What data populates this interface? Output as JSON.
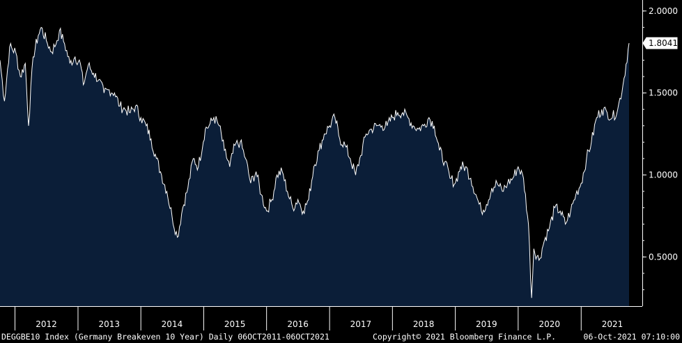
{
  "chart_data": {
    "type": "area",
    "ylim": [
      0.2,
      2.05
    ],
    "x_range": [
      "2011-10-06",
      "2021-10-06"
    ],
    "y_ticks": [
      {
        "value": 2.0,
        "label": "2.0000"
      },
      {
        "value": 1.5,
        "label": "1.5000"
      },
      {
        "value": 1.0,
        "label": "1.0000"
      },
      {
        "value": 0.5,
        "label": "0.5000"
      }
    ],
    "x_ticks": [
      "2012",
      "2013",
      "2014",
      "2015",
      "2016",
      "2017",
      "2018",
      "2019",
      "2020",
      "2021"
    ],
    "last_value": {
      "value": 1.8041,
      "label": "1.8041"
    },
    "x": [
      "2011-10-06",
      "2011-11-01",
      "2011-12-01",
      "2012-01-05",
      "2012-02-01",
      "2012-03-01",
      "2012-03-20",
      "2012-04-15",
      "2012-05-15",
      "2012-06-01",
      "2012-07-01",
      "2012-08-01",
      "2012-09-01",
      "2012-09-15",
      "2012-10-15",
      "2012-11-15",
      "2012-12-15",
      "2013-01-15",
      "2013-02-01",
      "2013-03-01",
      "2013-04-01",
      "2013-05-01",
      "2013-06-01",
      "2013-07-01",
      "2013-08-01",
      "2013-09-01",
      "2013-10-01",
      "2013-11-01",
      "2013-12-01",
      "2014-01-01",
      "2014-02-01",
      "2014-03-01",
      "2014-04-01",
      "2014-05-01",
      "2014-06-01",
      "2014-07-01",
      "2014-08-01",
      "2014-09-01",
      "2014-10-01",
      "2014-11-01",
      "2014-12-01",
      "2015-01-10",
      "2015-02-01",
      "2015-03-01",
      "2015-04-01",
      "2015-05-01",
      "2015-06-01",
      "2015-07-01",
      "2015-08-01",
      "2015-09-01",
      "2015-10-01",
      "2015-11-01",
      "2015-12-01",
      "2016-01-01",
      "2016-02-01",
      "2016-03-01",
      "2016-04-01",
      "2016-05-01",
      "2016-06-01",
      "2016-07-01",
      "2016-08-01",
      "2016-09-01",
      "2016-10-01",
      "2016-11-01",
      "2016-12-01",
      "2017-01-01",
      "2017-02-01",
      "2017-03-01",
      "2017-04-01",
      "2017-05-01",
      "2017-06-01",
      "2017-07-01",
      "2017-08-01",
      "2017-09-01",
      "2017-10-01",
      "2017-11-01",
      "2017-12-01",
      "2018-01-01",
      "2018-02-01",
      "2018-03-01",
      "2018-04-01",
      "2018-05-01",
      "2018-06-01",
      "2018-07-01",
      "2018-08-01",
      "2018-09-01",
      "2018-10-01",
      "2018-11-01",
      "2018-12-01",
      "2019-01-01",
      "2019-02-01",
      "2019-03-01",
      "2019-04-01",
      "2019-05-01",
      "2019-06-01",
      "2019-07-01",
      "2019-08-01",
      "2019-09-01",
      "2019-10-01",
      "2019-11-01",
      "2019-12-01",
      "2020-01-01",
      "2020-02-01",
      "2020-03-01",
      "2020-03-19",
      "2020-04-01",
      "2020-05-01",
      "2020-06-01",
      "2020-07-01",
      "2020-08-01",
      "2020-09-01",
      "2020-10-01",
      "2020-11-01",
      "2020-12-01",
      "2021-01-01",
      "2021-02-01",
      "2021-03-01",
      "2021-04-01",
      "2021-05-01",
      "2021-06-01",
      "2021-07-01",
      "2021-08-01",
      "2021-09-01",
      "2021-10-06"
    ],
    "values": [
      1.7,
      1.45,
      1.78,
      1.75,
      1.6,
      1.68,
      1.3,
      1.72,
      1.85,
      1.9,
      1.82,
      1.75,
      1.82,
      1.88,
      1.8,
      1.68,
      1.72,
      1.68,
      1.55,
      1.67,
      1.62,
      1.58,
      1.5,
      1.52,
      1.5,
      1.42,
      1.4,
      1.38,
      1.42,
      1.35,
      1.3,
      1.22,
      1.1,
      1.0,
      0.9,
      0.75,
      0.62,
      0.8,
      0.92,
      1.1,
      1.05,
      1.28,
      1.3,
      1.35,
      1.3,
      1.15,
      1.05,
      1.18,
      1.2,
      1.1,
      0.95,
      1.02,
      0.88,
      0.78,
      0.85,
      1.0,
      1.02,
      0.9,
      0.8,
      0.85,
      0.78,
      0.85,
      1.05,
      1.15,
      1.25,
      1.3,
      1.35,
      1.22,
      1.18,
      1.1,
      1.0,
      1.12,
      1.25,
      1.28,
      1.3,
      1.3,
      1.3,
      1.35,
      1.38,
      1.38,
      1.35,
      1.3,
      1.28,
      1.3,
      1.35,
      1.3,
      1.15,
      1.08,
      0.98,
      0.95,
      1.05,
      1.05,
      0.98,
      0.88,
      0.78,
      0.82,
      0.92,
      0.95,
      0.9,
      0.95,
      0.98,
      1.05,
      0.98,
      0.7,
      0.25,
      0.55,
      0.48,
      0.6,
      0.68,
      0.8,
      0.78,
      0.7,
      0.78,
      0.88,
      0.95,
      1.1,
      1.2,
      1.35,
      1.4,
      1.38,
      1.35,
      1.4,
      1.55,
      1.8041
    ]
  },
  "footer": {
    "left": "DEGGBE10 Index (Germany Breakeven 10 Year)  Daily 06OCT2011-06OCT2021",
    "center": "Copyright© 2021 Bloomberg Finance L.P.",
    "right": "06-Oct-2021 07:10:00"
  },
  "colors": {
    "background": "#000000",
    "area_fill": "#0b1e38",
    "line": "#ffffff",
    "axis": "#ffffff"
  }
}
